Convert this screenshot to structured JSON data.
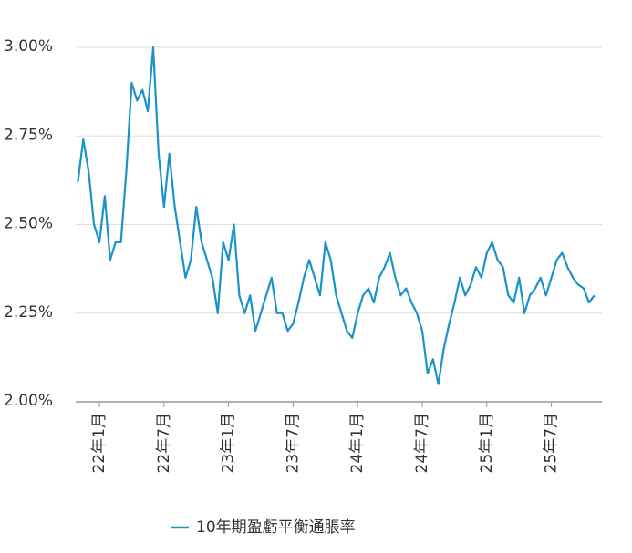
{
  "chart_data": {
    "type": "line",
    "categories": [
      null,
      null,
      null,
      null,
      "22年1月",
      null,
      null,
      null,
      null,
      null,
      null,
      null,
      null,
      null,
      null,
      null,
      "22年7月",
      null,
      null,
      null,
      null,
      null,
      null,
      null,
      null,
      null,
      null,
      null,
      "23年1月",
      null,
      null,
      null,
      null,
      null,
      null,
      null,
      null,
      null,
      null,
      null,
      "23年7月",
      null,
      null,
      null,
      null,
      null,
      null,
      null,
      null,
      null,
      null,
      null,
      "24年1月",
      null,
      null,
      null,
      null,
      null,
      null,
      null,
      null,
      null,
      null,
      null,
      "24年7月",
      null,
      null,
      null,
      null,
      null,
      null,
      null,
      null,
      null,
      null,
      null,
      "25年1月",
      null,
      null,
      null,
      null,
      null,
      null,
      null,
      null,
      null,
      null,
      null,
      "25年7月",
      null,
      null,
      null,
      null,
      null,
      null,
      null,
      null
    ],
    "series": [
      {
        "name": "10年期盈虧平衡通脹率",
        "color": "#1a93c9",
        "values": [
          2.62,
          2.74,
          2.65,
          2.5,
          2.45,
          2.58,
          2.4,
          2.45,
          2.45,
          2.65,
          2.9,
          2.85,
          2.88,
          2.82,
          3.0,
          2.7,
          2.55,
          2.7,
          2.55,
          2.45,
          2.35,
          2.4,
          2.55,
          2.45,
          2.4,
          2.35,
          2.25,
          2.45,
          2.4,
          2.5,
          2.3,
          2.25,
          2.3,
          2.2,
          2.25,
          2.3,
          2.35,
          2.25,
          2.25,
          2.2,
          2.22,
          2.28,
          2.35,
          2.4,
          2.35,
          2.3,
          2.45,
          2.4,
          2.3,
          2.25,
          2.2,
          2.18,
          2.25,
          2.3,
          2.32,
          2.28,
          2.35,
          2.38,
          2.42,
          2.35,
          2.3,
          2.32,
          2.28,
          2.25,
          2.2,
          2.08,
          2.12,
          2.05,
          2.15,
          2.22,
          2.28,
          2.35,
          2.3,
          2.33,
          2.38,
          2.35,
          2.42,
          2.45,
          2.4,
          2.38,
          2.3,
          2.28,
          2.35,
          2.25,
          2.3,
          2.32,
          2.35,
          2.3,
          2.35,
          2.4,
          2.42,
          2.38,
          2.35,
          2.33,
          2.32,
          2.28,
          2.3
        ]
      }
    ],
    "ylim": [
      2.0,
      3.05
    ],
    "yticks": [
      {
        "value": 2.0,
        "label": "2.00%"
      },
      {
        "value": 2.25,
        "label": "2.25%"
      },
      {
        "value": 2.5,
        "label": "2.50%"
      },
      {
        "value": 2.75,
        "label": "2.75%"
      },
      {
        "value": 3.0,
        "label": "3.00%"
      }
    ],
    "grid": true,
    "legend": "bottom"
  }
}
